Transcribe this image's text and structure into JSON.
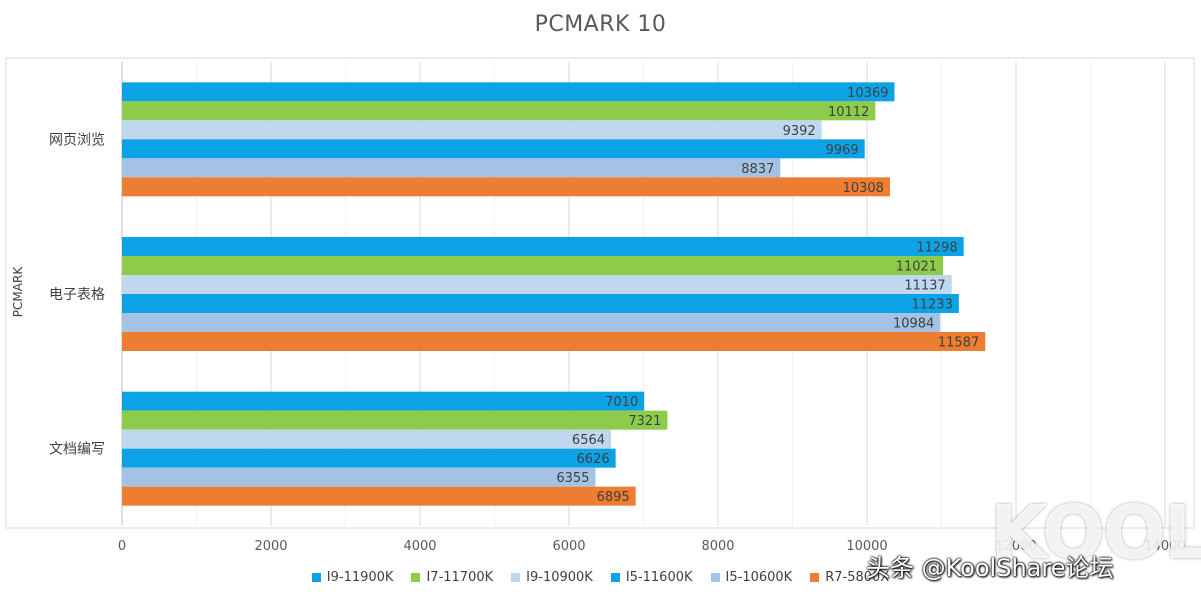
{
  "chart_data": {
    "type": "bar",
    "orientation": "horizontal",
    "title": "PCMARK 10",
    "ylabel": "PCMARK",
    "xlabel": "",
    "categories": [
      "网页浏览",
      "电子表格",
      "文档编写"
    ],
    "series": [
      {
        "name": "I9-11900K",
        "color": "#0ca3e6",
        "values": [
          10369,
          11298,
          7010
        ]
      },
      {
        "name": "I7-11700K",
        "color": "#8dcc4b",
        "values": [
          10112,
          11021,
          7321
        ]
      },
      {
        "name": "I9-10900K",
        "color": "#bfd7ef",
        "values": [
          9392,
          11137,
          6564
        ]
      },
      {
        "name": "I5-11600K",
        "color": "#0ca3e6",
        "values": [
          9969,
          11233,
          6626
        ]
      },
      {
        "name": "I5-10600K",
        "color": "#a4c2e4",
        "values": [
          8837,
          10984,
          6355
        ]
      },
      {
        "name": "R7-5800X",
        "color": "#ed7d31",
        "values": [
          10308,
          11587,
          6895
        ]
      }
    ],
    "xlim": [
      0,
      14000
    ],
    "x_ticks": [
      "0",
      "2000",
      "4000",
      "6000",
      "8000",
      "10000",
      "12000",
      "14000"
    ],
    "x_tick_values": [
      0,
      2000,
      4000,
      6000,
      8000,
      10000,
      12000,
      14000
    ],
    "grid": true,
    "minor_grid": true,
    "legend_position": "bottom",
    "data_labels": true
  },
  "watermark": {
    "text": "头条 @KoolShare论坛",
    "logo": "KOOL"
  }
}
